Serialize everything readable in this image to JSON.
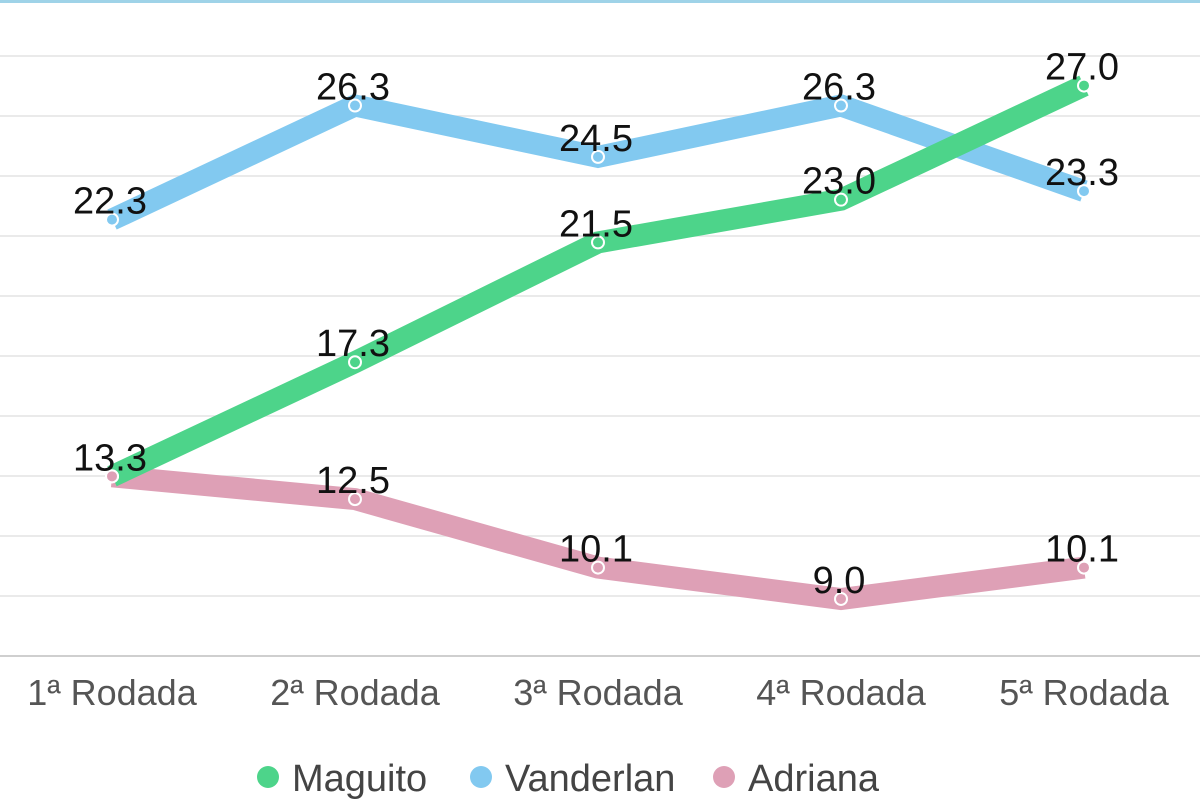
{
  "chart_data": {
    "type": "line",
    "categories": [
      "1ª Rodada",
      "2ª Rodada",
      "3ª Rodada",
      "4ª Rodada",
      "5ª Rodada"
    ],
    "series": [
      {
        "name": "Maguito",
        "values": [
          13.3,
          17.3,
          21.5,
          23.0,
          27.0
        ],
        "color": "#4dd48a"
      },
      {
        "name": "Vanderlan",
        "values": [
          22.3,
          26.3,
          24.5,
          26.3,
          23.3
        ],
        "color": "#82c9f0"
      },
      {
        "name": "Adriana",
        "values": [
          13.3,
          12.5,
          10.1,
          9.0,
          10.1
        ],
        "color": "#dea0b6"
      }
    ],
    "value_labels": [
      [
        "",
        "17.3",
        "21.5",
        "23.0",
        "27.0"
      ],
      [
        "22.3",
        "26.3",
        "24.5",
        "26.3",
        "23.3"
      ],
      [
        "13.3",
        "12.5",
        "10.1",
        "9.0",
        "10.1"
      ]
    ],
    "ylim": [
      7,
      30
    ],
    "grid": true,
    "legend": "bottom",
    "title": "",
    "xlabel": "",
    "ylabel": "",
    "axis_line_color": "#9fd3e8",
    "grid_color": "#e3e3e3"
  }
}
